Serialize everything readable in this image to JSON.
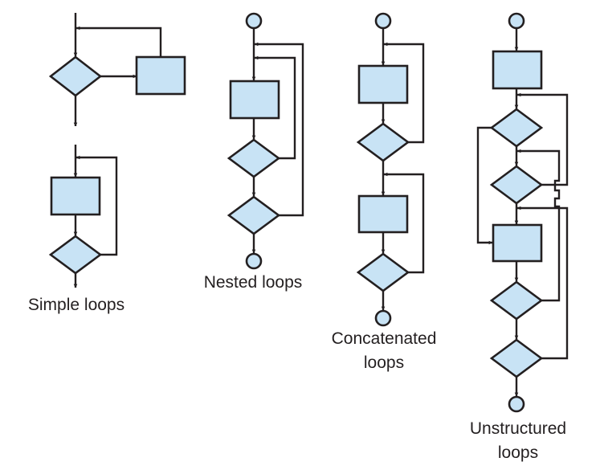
{
  "diagram": {
    "captions": {
      "simple": "Simple loops",
      "nested": "Nested loops",
      "concatenated_line1": "Concatenated",
      "concatenated_line2": "loops",
      "unstructured_line1": "Unstructured",
      "unstructured_line2": "loops"
    }
  },
  "colors": {
    "fill": "#c8e3f5",
    "stroke": "#231f20"
  }
}
